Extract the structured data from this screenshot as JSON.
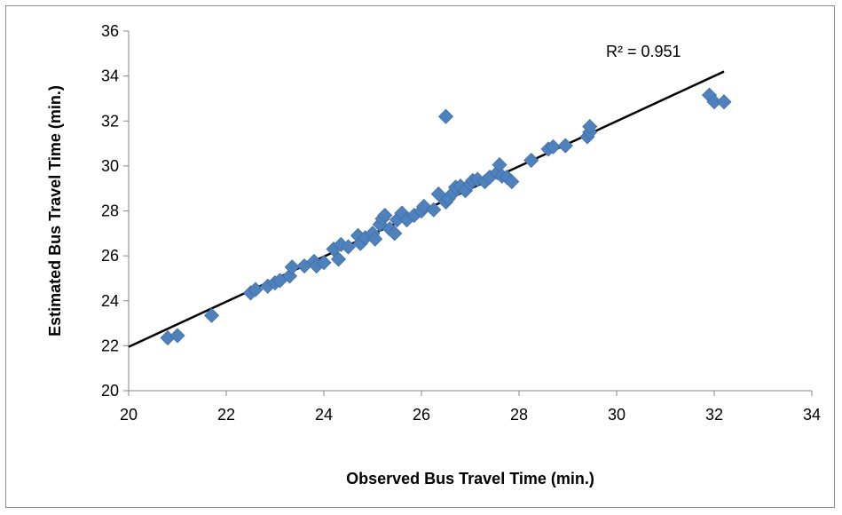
{
  "chart_data": {
    "type": "scatter",
    "title": "",
    "xlabel": "Observed Bus Travel Time (min.)",
    "ylabel": "Estimated Bus Travel Time (min.)",
    "xlim": [
      20,
      34
    ],
    "ylim": [
      20,
      36
    ],
    "x_ticks": [
      "20",
      "22",
      "24",
      "26",
      "28",
      "30",
      "32",
      "34"
    ],
    "y_ticks": [
      "20",
      "22",
      "24",
      "26",
      "28",
      "30",
      "32",
      "34",
      "36"
    ],
    "grid": false,
    "legend": "none",
    "annotation": "R² = 0.951",
    "marker_color": "#4f81bd",
    "trendline_color": "#000000",
    "trendline": {
      "x": [
        20,
        32.2
      ],
      "y": [
        21.95,
        34.2
      ]
    },
    "points": [
      [
        20.8,
        22.35
      ],
      [
        21.0,
        22.45
      ],
      [
        21.7,
        23.35
      ],
      [
        22.5,
        24.35
      ],
      [
        22.6,
        24.5
      ],
      [
        22.85,
        24.65
      ],
      [
        23.0,
        24.8
      ],
      [
        23.1,
        24.9
      ],
      [
        23.3,
        25.1
      ],
      [
        23.35,
        25.5
      ],
      [
        23.6,
        25.55
      ],
      [
        23.8,
        25.75
      ],
      [
        23.85,
        25.55
      ],
      [
        24.0,
        25.7
      ],
      [
        24.2,
        26.3
      ],
      [
        24.35,
        26.5
      ],
      [
        24.3,
        25.85
      ],
      [
        24.5,
        26.4
      ],
      [
        24.7,
        26.9
      ],
      [
        24.75,
        26.55
      ],
      [
        24.85,
        26.8
      ],
      [
        25.0,
        27.0
      ],
      [
        25.05,
        26.75
      ],
      [
        25.15,
        27.4
      ],
      [
        25.2,
        27.65
      ],
      [
        25.25,
        27.8
      ],
      [
        25.35,
        27.2
      ],
      [
        25.45,
        27.0
      ],
      [
        25.5,
        27.6
      ],
      [
        25.6,
        27.9
      ],
      [
        25.7,
        27.6
      ],
      [
        25.85,
        27.8
      ],
      [
        26.0,
        28.0
      ],
      [
        26.05,
        28.2
      ],
      [
        26.25,
        28.05
      ],
      [
        26.35,
        28.75
      ],
      [
        26.5,
        28.4
      ],
      [
        26.55,
        28.55
      ],
      [
        26.65,
        28.8
      ],
      [
        26.7,
        29.05
      ],
      [
        26.8,
        29.1
      ],
      [
        26.9,
        28.9
      ],
      [
        27.0,
        29.2
      ],
      [
        27.05,
        29.35
      ],
      [
        27.15,
        29.4
      ],
      [
        27.3,
        29.3
      ],
      [
        27.4,
        29.5
      ],
      [
        27.55,
        29.7
      ],
      [
        27.6,
        30.05
      ],
      [
        27.65,
        29.55
      ],
      [
        27.75,
        29.5
      ],
      [
        27.85,
        29.3
      ],
      [
        28.25,
        30.25
      ],
      [
        28.6,
        30.75
      ],
      [
        28.7,
        30.85
      ],
      [
        28.95,
        30.9
      ],
      [
        29.4,
        31.3
      ],
      [
        29.45,
        31.5
      ],
      [
        29.45,
        31.75
      ],
      [
        26.5,
        32.2
      ],
      [
        31.9,
        33.15
      ],
      [
        32.0,
        32.85
      ],
      [
        32.2,
        32.85
      ]
    ]
  }
}
